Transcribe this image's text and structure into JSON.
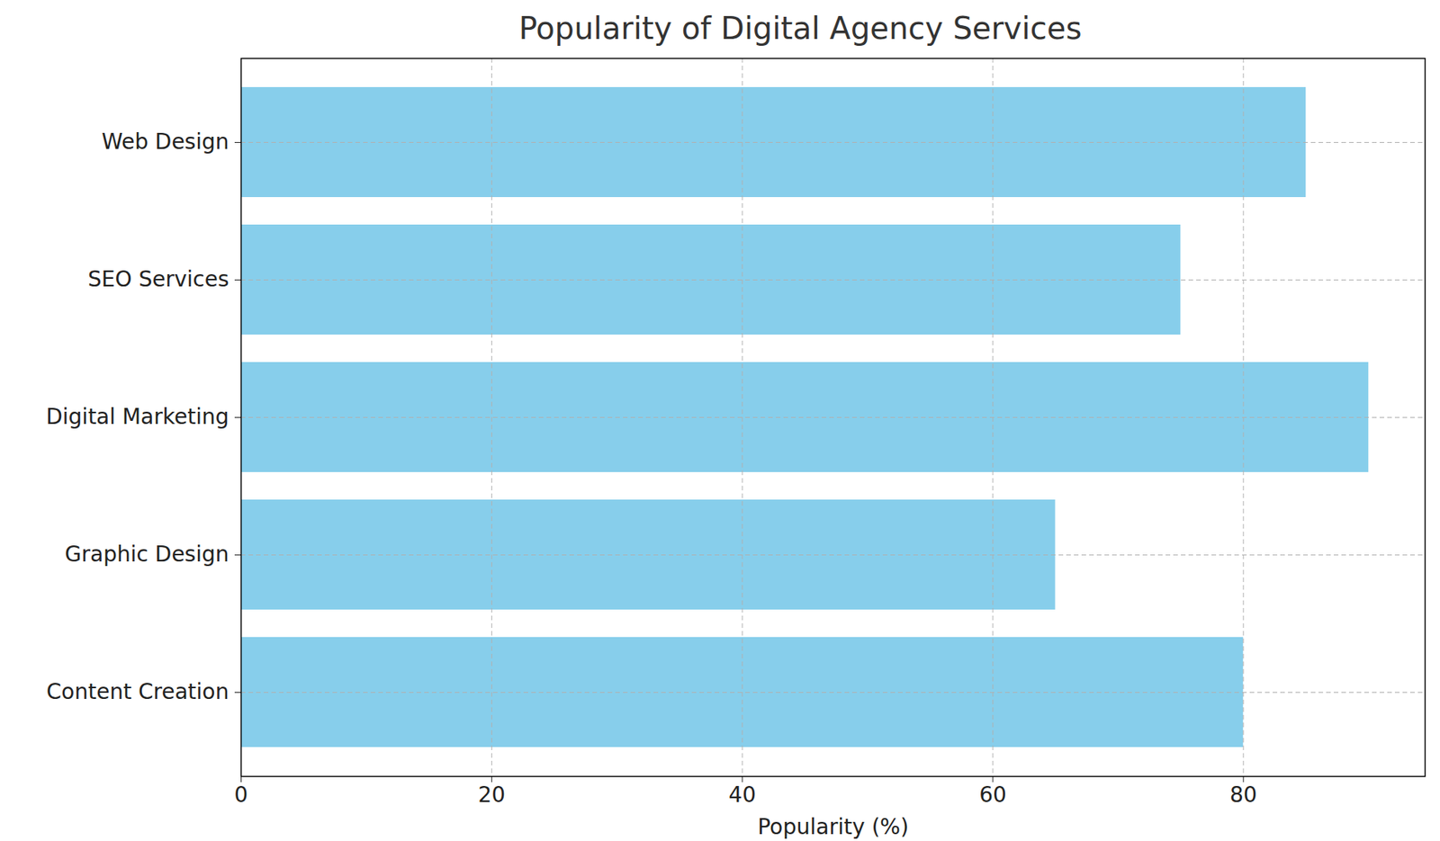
{
  "chart_data": {
    "type": "bar",
    "title": "Popularity of Digital Agency Services",
    "x_label": "Popularity (%)",
    "orientation": "horizontal",
    "categories": [
      "Content Creation",
      "Graphic Design",
      "Digital Marketing",
      "SEO Services",
      "Web Design"
    ],
    "values": [
      80,
      65,
      90,
      75,
      85
    ],
    "color": "#87ceeb",
    "xlim": [
      0,
      94.5
    ],
    "xticks": [
      0,
      20,
      40,
      60,
      80
    ],
    "grid": true
  }
}
